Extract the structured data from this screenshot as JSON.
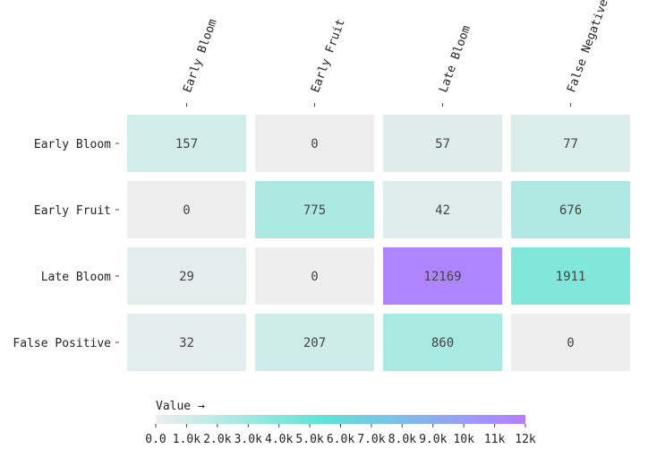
{
  "chart_data": {
    "type": "heatmap",
    "rows": [
      "Early Bloom",
      "Early Fruit",
      "Late Bloom",
      "False Positive"
    ],
    "columns": [
      "Early Bloom",
      "Early Fruit",
      "Late Bloom",
      "False Negative"
    ],
    "values": [
      [
        157,
        0,
        57,
        77
      ],
      [
        0,
        775,
        42,
        676
      ],
      [
        29,
        0,
        12169,
        1911
      ],
      [
        32,
        207,
        860,
        0
      ]
    ],
    "color_scale": {
      "label": "Value →",
      "domain": [
        0,
        12169
      ],
      "ticks": [
        "0.0",
        "1.0k",
        "2.0k",
        "3.0k",
        "4.0k",
        "5.0k",
        "6.0k",
        "7.0k",
        "8.0k",
        "9.0k",
        "10k",
        "11k",
        "12k"
      ],
      "tick_values": [
        0,
        1000,
        2000,
        3000,
        4000,
        5000,
        6000,
        7000,
        8000,
        9000,
        10000,
        11000,
        12000
      ],
      "stops": [
        {
          "t": 0.0,
          "color": "#eeeeee"
        },
        {
          "t": 0.45,
          "color": "#5fe3d6"
        },
        {
          "t": 0.75,
          "color": "#8aaef0"
        },
        {
          "t": 1.0,
          "color": "#b77bff"
        }
      ]
    },
    "x_axis_position": "top",
    "legend_placement": "bottom"
  }
}
